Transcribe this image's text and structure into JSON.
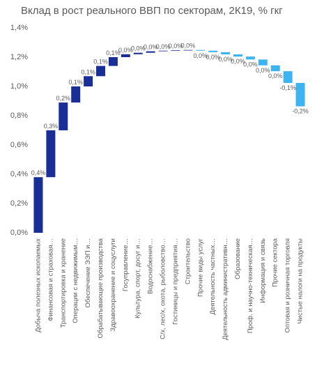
{
  "chart_data": {
    "type": "waterfall",
    "title": "Вклад в рост реального ВВП по секторам, 2К19, % гкг",
    "categories": [
      "Добыча полезных ископаемых",
      "Финансовая и страховая…",
      "Транспортировка и хранение",
      "Операции с недвижимым…",
      "Обеспечение ЭЭП и…",
      "Обрабатывающие производства",
      "Здравоохранение и соцуслуги",
      "Госуправление…",
      "Культура, спорт, досуг и…",
      "Водоснабжение…",
      "С/х, лес/х, охота, рыболовство…",
      "Гостиницы и предприятия…",
      "Строительство",
      "Прочие виды услуг",
      "Деятельность частных…",
      "Деятельность административн…",
      "Образование",
      "Проф. и научно-техническая…",
      "Информация и связь",
      "Прочие сектора",
      "Оптовая и розничная торговля",
      "Чистые налоги на продукты"
    ],
    "values": [
      0.38,
      0.32,
      0.19,
      0.11,
      0.07,
      0.07,
      0.06,
      0.02,
      0.01,
      0.01,
      0.004,
      0.003,
      0.002,
      -0.005,
      -0.01,
      -0.015,
      -0.015,
      -0.02,
      -0.04,
      -0.04,
      -0.08,
      -0.16
    ],
    "value_labels": [
      "0,4%",
      "0,3%",
      "0,2%",
      "0,1%",
      "0,1%",
      "0,1%",
      "0,1%",
      "0,0%",
      "0,0%",
      "0,0%",
      "0,0%",
      "0,0%",
      "0,0%",
      "0,0%",
      "0,0%",
      "0,0%",
      "0,0%",
      "0,0%",
      "0,0%",
      "0,0%",
      "-0,1%",
      "-0,2%"
    ],
    "color_positive": "#1a2f96",
    "color_negative": "#3db3f2",
    "ylim": [
      0,
      1.4
    ],
    "yticks": [
      {
        "value": 0,
        "label": "0,0%"
      },
      {
        "value": 0.2,
        "label": "0,2%"
      },
      {
        "value": 0.4,
        "label": "0,4%"
      },
      {
        "value": 0.6,
        "label": "0,6%"
      },
      {
        "value": 0.8,
        "label": "0,8%"
      },
      {
        "value": 1.0,
        "label": "1,0%"
      },
      {
        "value": 1.2,
        "label": "1,2%"
      },
      {
        "value": 1.4,
        "label": "1,4%"
      }
    ],
    "grid": false
  }
}
